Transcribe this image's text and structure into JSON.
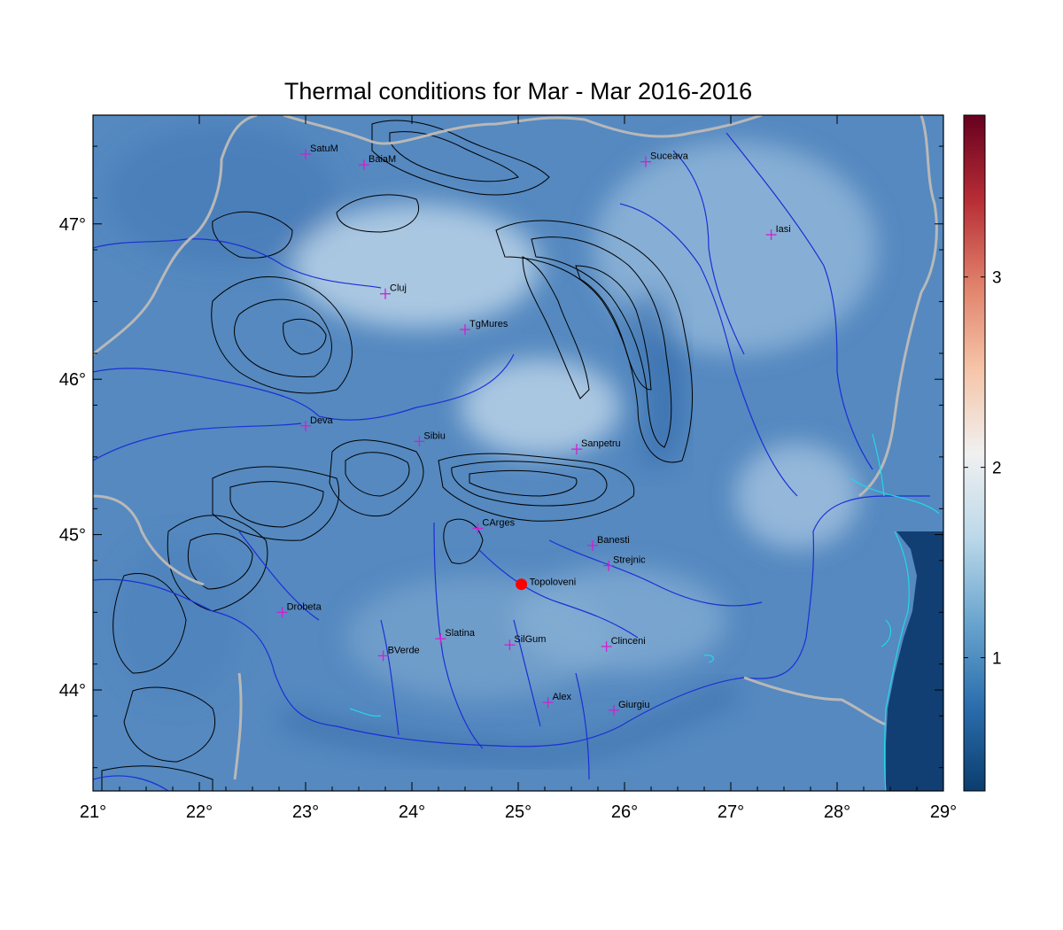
{
  "title": "Thermal conditions for Mar - Mar  2016-2016",
  "map": {
    "lon_range": [
      21,
      29
    ],
    "lat_range": [
      43.35,
      47.7
    ],
    "x_ticks": [
      {
        "value": 21,
        "label": "21°"
      },
      {
        "value": 22,
        "label": "22°"
      },
      {
        "value": 23,
        "label": "23°"
      },
      {
        "value": 24,
        "label": "24°"
      },
      {
        "value": 25,
        "label": "25°"
      },
      {
        "value": 26,
        "label": "26°"
      },
      {
        "value": 27,
        "label": "27°"
      },
      {
        "value": 28,
        "label": "28°"
      },
      {
        "value": 29,
        "label": "29°"
      }
    ],
    "y_ticks": [
      {
        "value": 44,
        "label": "44°"
      },
      {
        "value": 45,
        "label": "45°"
      },
      {
        "value": 46,
        "label": "46°"
      },
      {
        "value": 47,
        "label": "47°"
      }
    ],
    "colors": {
      "field_base": "#5589c0",
      "field_light": "#b4d0e6",
      "sea": "#123f73",
      "rivers": "#1b2fd6",
      "borders": "#b8b8b8",
      "contours": "#000000",
      "coast": "#22d7e8",
      "station_marker": "#d020d0",
      "highlight": "#ff0000"
    }
  },
  "stations": [
    {
      "name": "SatuM",
      "lon": 23.0,
      "lat": 47.45
    },
    {
      "name": "BaiaM",
      "lon": 23.55,
      "lat": 47.38
    },
    {
      "name": "Suceava",
      "lon": 26.2,
      "lat": 47.4
    },
    {
      "name": "Iasi",
      "lon": 27.38,
      "lat": 46.93
    },
    {
      "name": "Cluj",
      "lon": 23.75,
      "lat": 46.55
    },
    {
      "name": "TgMures",
      "lon": 24.5,
      "lat": 46.32
    },
    {
      "name": "Deva",
      "lon": 23.0,
      "lat": 45.7
    },
    {
      "name": "Sibiu",
      "lon": 24.07,
      "lat": 45.6
    },
    {
      "name": "Sanpetru",
      "lon": 25.55,
      "lat": 45.55
    },
    {
      "name": "CArges",
      "lon": 24.62,
      "lat": 45.04
    },
    {
      "name": "Banesti",
      "lon": 25.7,
      "lat": 44.93
    },
    {
      "name": "Strejnic",
      "lon": 25.85,
      "lat": 44.8
    },
    {
      "name": "Drobeta",
      "lon": 22.78,
      "lat": 44.5
    },
    {
      "name": "Slatina",
      "lon": 24.27,
      "lat": 44.33
    },
    {
      "name": "SilGum",
      "lon": 24.92,
      "lat": 44.29
    },
    {
      "name": "Clinceni",
      "lon": 25.83,
      "lat": 44.28
    },
    {
      "name": "BVerde",
      "lon": 23.73,
      "lat": 44.22
    },
    {
      "name": "Alex",
      "lon": 25.28,
      "lat": 43.92
    },
    {
      "name": "Giurgiu",
      "lon": 25.9,
      "lat": 43.87
    }
  ],
  "highlight_station": {
    "name": "Topoloveni",
    "lon": 25.03,
    "lat": 44.68
  },
  "colorbar": {
    "min": 0.3,
    "max": 3.85,
    "ticks": [
      {
        "value": 1,
        "label": "1"
      },
      {
        "value": 2,
        "label": "2"
      },
      {
        "value": 3,
        "label": "3"
      }
    ],
    "stops": [
      "#0b3d6e",
      "#2a6ead",
      "#6aa5cf",
      "#bcd8e9",
      "#f0f0f0",
      "#f6c4a8",
      "#e0806a",
      "#b72d35",
      "#67001f"
    ]
  }
}
